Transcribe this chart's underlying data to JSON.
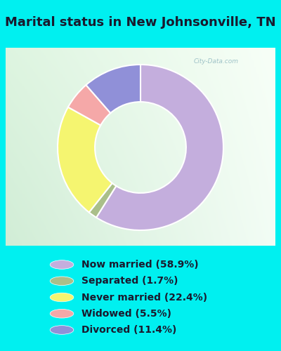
{
  "title": "Marital status in New Johnsonville, TN",
  "slices": [
    {
      "label": "Now married (58.9%)",
      "value": 58.9,
      "color": "#c4aedd"
    },
    {
      "label": "Separated (1.7%)",
      "value": 1.7,
      "color": "#aabf8a"
    },
    {
      "label": "Never married (22.4%)",
      "value": 22.4,
      "color": "#f5f570"
    },
    {
      "label": "Widowed (5.5%)",
      "value": 5.5,
      "color": "#f5a8a8"
    },
    {
      "label": "Divorced (11.4%)",
      "value": 11.4,
      "color": "#9090d8"
    }
  ],
  "legend_labels": [
    "Now married (58.9%)",
    "Separated (1.7%)",
    "Never married (22.4%)",
    "Widowed (5.5%)",
    "Divorced (11.4%)"
  ],
  "legend_colors": [
    "#c4aedd",
    "#aabf8a",
    "#f5f570",
    "#f5a8a8",
    "#9090d8"
  ],
  "outer_bg": "#00f0f0",
  "chart_bg_tl": "#d8eed8",
  "chart_bg_tr": "#f0f8f0",
  "chart_bg_br": "#ffffff",
  "chart_bg_bl": "#e0f0e0",
  "title_fontsize": 13,
  "legend_fontsize": 10,
  "watermark": "City-Data.com",
  "donut_width": 0.45,
  "startangle": 90
}
